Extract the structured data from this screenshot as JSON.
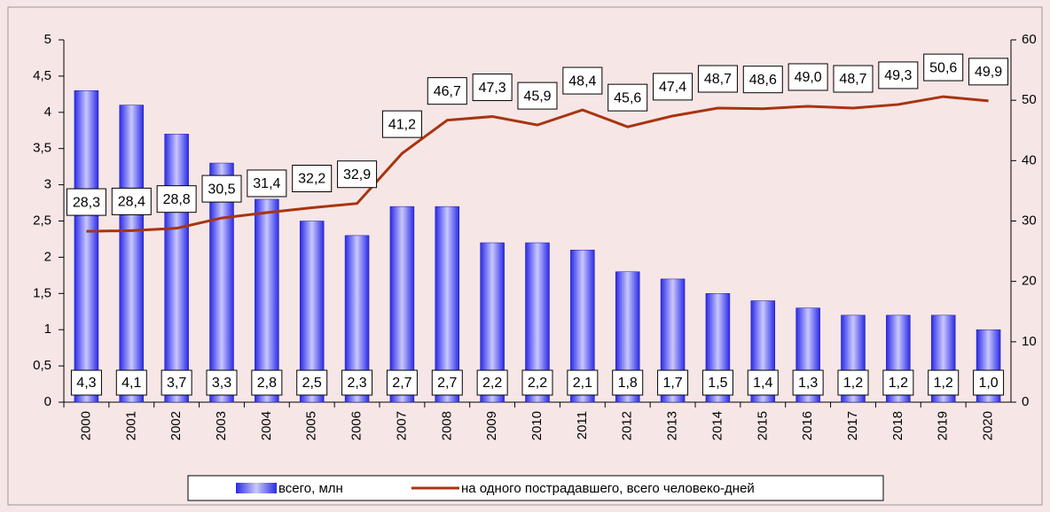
{
  "chart_data": {
    "type": "bar",
    "categories": [
      "2000",
      "2001",
      "2002",
      "2003",
      "2004",
      "2005",
      "2006",
      "2007",
      "2008",
      "2009",
      "2010",
      "2011",
      "2012",
      "2013",
      "2014",
      "2015",
      "2016",
      "2017",
      "2018",
      "2019",
      "2020"
    ],
    "series": [
      {
        "name": "всего, млн",
        "type": "bar",
        "color": "#3333ee",
        "values": [
          4.3,
          4.1,
          3.7,
          3.3,
          2.8,
          2.5,
          2.3,
          2.7,
          2.7,
          2.2,
          2.2,
          2.1,
          1.8,
          1.7,
          1.5,
          1.4,
          1.3,
          1.2,
          1.2,
          1.2,
          1.0
        ],
        "value_labels": [
          "4,3",
          "4,1",
          "3,7",
          "3,3",
          "2,8",
          "2,5",
          "2,3",
          "2,7",
          "2,7",
          "2,2",
          "2,2",
          "2,1",
          "1,8",
          "1,7",
          "1,5",
          "1,4",
          "1,3",
          "1,2",
          "1,2",
          "1,2",
          "1,0"
        ]
      },
      {
        "name": "на одного пострадавшего, всего человеко-дней",
        "type": "line",
        "axis": "y2",
        "color": "#a8340f",
        "values": [
          28.3,
          28.4,
          28.8,
          30.5,
          31.4,
          32.2,
          32.9,
          41.2,
          46.7,
          47.3,
          45.9,
          48.4,
          45.6,
          47.4,
          48.7,
          48.6,
          49.0,
          48.7,
          49.3,
          50.6,
          49.9
        ],
        "value_labels": [
          "28,3",
          "28,4",
          "28,8",
          "30,5",
          "31,4",
          "32,2",
          "32,9",
          "41,2",
          "46,7",
          "47,3",
          "45,9",
          "48,4",
          "45,6",
          "47,4",
          "48,7",
          "48,6",
          "49,0",
          "48,7",
          "49,3",
          "50,6",
          "49,9"
        ]
      }
    ],
    "ylim": [
      0,
      5
    ],
    "yticks": [
      0,
      {
        "value": 0.5,
        "label": "0,5"
      },
      1,
      {
        "value": 1.5,
        "label": "1,5"
      },
      2,
      {
        "value": 2.5,
        "label": "2,5"
      },
      3,
      {
        "value": 3.5,
        "label": "3,5"
      },
      4,
      {
        "value": 4.5,
        "label": "4,5"
      },
      5
    ],
    "y2lim": [
      0,
      60
    ],
    "y2ticks": [
      0,
      10,
      20,
      30,
      40,
      50,
      60
    ],
    "legend": "bottom"
  }
}
